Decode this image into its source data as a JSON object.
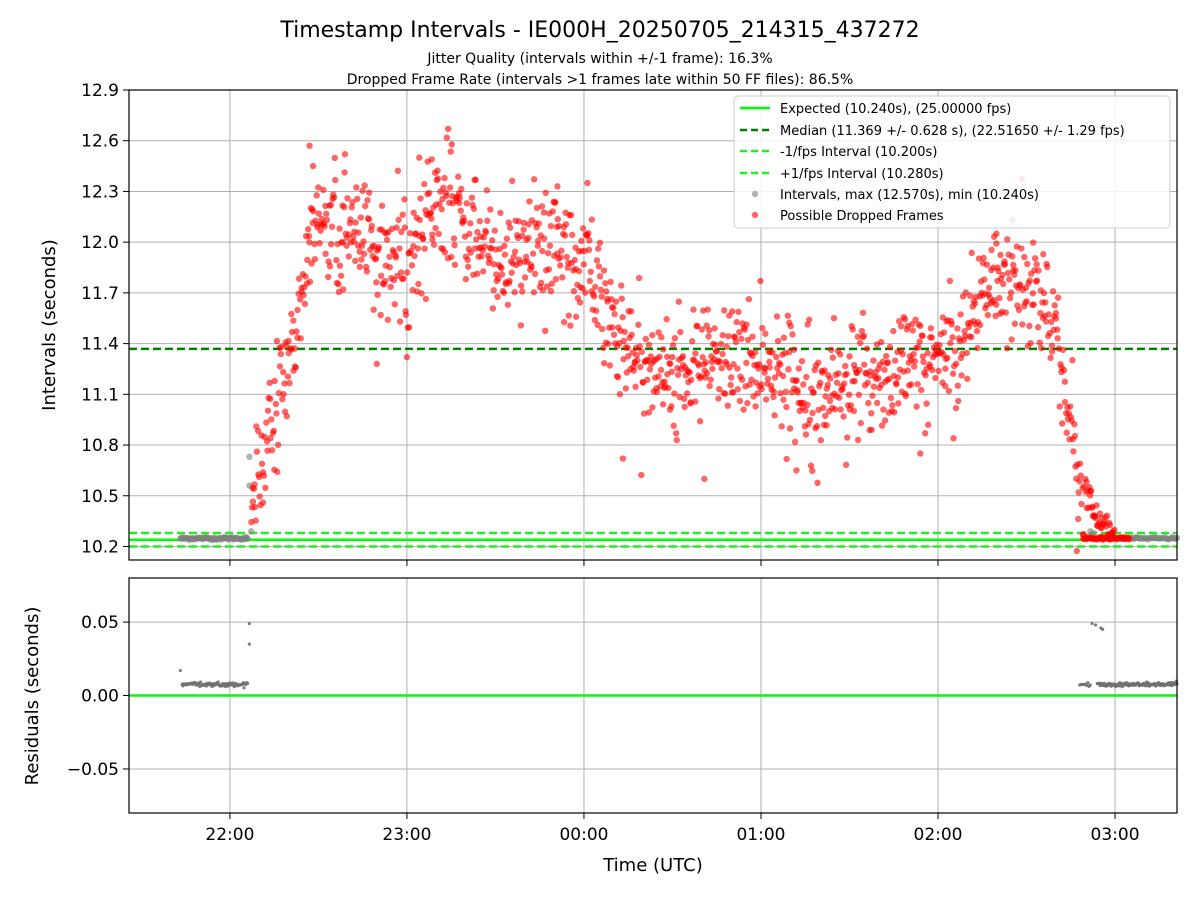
{
  "chart_data": [
    {
      "type": "scatter",
      "title": "Timestamp Intervals - IE000H_20250705_214315_437272",
      "subtitle_1": "Jitter Quality (intervals within +/-1 frame): 16.3%",
      "subtitle_2": "Dropped Frame Rate (intervals >1 frames late within 50 FF files): 86.5%",
      "xlabel": "",
      "ylabel": "Intervals (seconds)",
      "x_unit": "hours since 00:00 UTC",
      "xlim": [
        -2.57,
        3.35
      ],
      "ylim": [
        10.12,
        12.9
      ],
      "x_ticks": [
        -2,
        -1,
        0,
        1,
        2,
        3
      ],
      "x_tick_labels": [
        "22:00",
        "23:00",
        "00:00",
        "01:00",
        "02:00",
        "03:00"
      ],
      "y_ticks": [
        10.2,
        10.5,
        10.8,
        11.1,
        11.4,
        11.7,
        12.0,
        12.3,
        12.6,
        12.9
      ],
      "y_tick_labels": [
        "10.2",
        "10.5",
        "10.8",
        "11.1",
        "11.4",
        "11.7",
        "12.0",
        "12.3",
        "12.6",
        "12.9"
      ],
      "grid": true,
      "legend_position": "top-right",
      "reference_lines": [
        {
          "name": "Expected (10.240s), (25.00000 fps)",
          "y": 10.24,
          "color": "#00ff00",
          "style": "solid"
        },
        {
          "name": "Median (11.369 +/- 0.628 s), (22.51650 +/- 1.29 fps)",
          "y": 11.369,
          "color": "#008000",
          "style": "dashed"
        },
        {
          "name": "-1/fps Interval (10.200s)",
          "y": 10.2,
          "color": "#22ee22",
          "style": "dashed"
        },
        {
          "name": "+1/fps Interval (10.280s)",
          "y": 10.28,
          "color": "#22ee22",
          "style": "dashed"
        }
      ],
      "series": [
        {
          "name": "Intervals, max (12.570s), min (10.240s)",
          "color": "#808080",
          "segments": [
            {
              "x_start": -2.28,
              "x_end": -1.9,
              "y": 10.248,
              "n": 80
            },
            {
              "x_start": 2.87,
              "x_end": 3.35,
              "y": 10.248,
              "n": 60
            }
          ],
          "points": [
            [
              -1.89,
              10.73
            ],
            [
              -1.89,
              10.56
            ],
            [
              -1.88,
              10.29
            ],
            [
              2.86,
              10.29
            ],
            [
              2.88,
              10.28
            ]
          ]
        },
        {
          "name": "Possible Dropped Frames",
          "color": "#ff0000",
          "segments": [
            {
              "x_start": 2.82,
              "x_end": 3.08,
              "y": 10.248,
              "n": 45
            }
          ],
          "trend": [
            [
              -1.88,
              10.45
            ],
            [
              -1.75,
              10.95
            ],
            [
              -1.62,
              11.5
            ],
            [
              -1.55,
              12.0
            ],
            [
              -1.45,
              12.15
            ],
            [
              -1.2,
              11.95
            ],
            [
              -1.0,
              11.85
            ],
            [
              -0.9,
              12.1
            ],
            [
              -0.8,
              12.25
            ],
            [
              -0.6,
              12.05
            ],
            [
              -0.4,
              11.85
            ],
            [
              -0.2,
              12.0
            ],
            [
              0.0,
              11.9
            ],
            [
              0.1,
              11.7
            ],
            [
              0.25,
              11.35
            ],
            [
              0.5,
              11.2
            ],
            [
              0.75,
              11.3
            ],
            [
              1.0,
              11.3
            ],
            [
              1.25,
              11.15
            ],
            [
              1.5,
              11.15
            ],
            [
              1.75,
              11.25
            ],
            [
              2.0,
              11.3
            ],
            [
              2.15,
              11.45
            ],
            [
              2.3,
              11.8
            ],
            [
              2.45,
              11.8
            ],
            [
              2.6,
              11.65
            ],
            [
              2.68,
              11.35
            ],
            [
              2.75,
              10.95
            ],
            [
              2.8,
              10.6
            ],
            [
              2.9,
              10.35
            ],
            [
              3.0,
              10.27
            ]
          ],
          "points": [
            [
              -1.55,
              12.57
            ],
            [
              -1.53,
              12.45
            ],
            [
              -1.35,
              12.52
            ],
            [
              -0.93,
              12.5
            ],
            [
              -0.86,
              12.49
            ],
            [
              0.02,
              12.35
            ],
            [
              -0.15,
              12.33
            ],
            [
              0.68,
              10.6
            ],
            [
              0.22,
              10.72
            ],
            [
              1.2,
              10.65
            ],
            [
              1.9,
              10.75
            ],
            [
              2.42,
              12.13
            ],
            [
              2.33,
              12.05
            ],
            [
              -1.17,
              11.28
            ],
            [
              -1.0,
              11.32
            ]
          ]
        }
      ]
    },
    {
      "type": "scatter",
      "title": "",
      "xlabel": "Time (UTC)",
      "ylabel": "Residuals (seconds)",
      "xlim": [
        -2.57,
        3.35
      ],
      "ylim": [
        -0.08,
        0.08
      ],
      "x_ticks": [
        -2,
        -1,
        0,
        1,
        2,
        3
      ],
      "x_tick_labels": [
        "22:00",
        "23:00",
        "00:00",
        "01:00",
        "02:00",
        "03:00"
      ],
      "y_ticks": [
        -0.05,
        0.0,
        0.05
      ],
      "y_tick_labels": [
        "−0.05",
        "0.00",
        "0.05"
      ],
      "grid": true,
      "reference_lines": [
        {
          "name": "",
          "y": 0.0,
          "color": "#00ff00",
          "style": "solid"
        }
      ],
      "series": [
        {
          "name": "",
          "color": "#707070",
          "segments": [
            {
              "x_start": -2.27,
              "x_end": -1.9,
              "y": 0.0075,
              "n": 90
            },
            {
              "x_start": 2.8,
              "x_end": 2.86,
              "y": 0.0075,
              "n": 10
            },
            {
              "x_start": 2.9,
              "x_end": 3.35,
              "y": 0.0075,
              "n": 140
            }
          ],
          "points": [
            [
              -2.28,
              0.017
            ],
            [
              -1.89,
              0.049
            ],
            [
              -1.89,
              0.035
            ],
            [
              2.87,
              0.049
            ],
            [
              2.89,
              0.048
            ],
            [
              2.92,
              0.046
            ],
            [
              2.93,
              0.045
            ]
          ]
        }
      ]
    }
  ]
}
